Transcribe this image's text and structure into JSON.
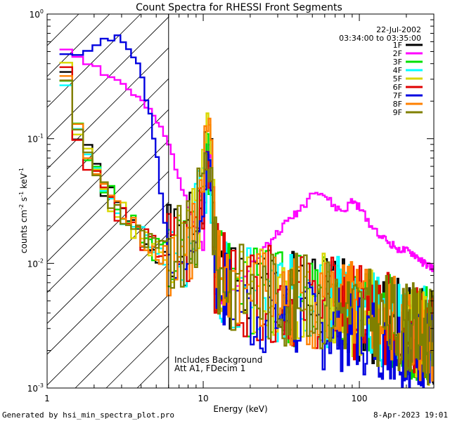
{
  "chart_data": {
    "type": "line",
    "title": "Count Spectra for RHESSI Front Segments",
    "xlabel": "Energy (keV)",
    "ylabel_main": "counts cm",
    "ylabel_exp1": "-2",
    "ylabel_s": " s",
    "ylabel_exp2": "-1",
    "ylabel_kev": " keV",
    "ylabel_exp3": "-1",
    "x_scale": "log",
    "y_scale": "log",
    "xlim": [
      1,
      300
    ],
    "ylim": [
      0.001,
      1
    ],
    "x_ticks": [
      {
        "value": 1,
        "label": "1"
      },
      {
        "value": 10,
        "label": "10"
      },
      {
        "value": 100,
        "label": "100"
      }
    ],
    "y_ticks": [
      {
        "value": 1,
        "base": "10",
        "exp": "0"
      },
      {
        "value": 0.1,
        "base": "10",
        "exp": "-1"
      },
      {
        "value": 0.01,
        "base": "10",
        "exp": "-2"
      },
      {
        "value": 0.001,
        "base": "10",
        "exp": "-3"
      }
    ],
    "date": "22-Jul-2002",
    "time_range": "03:34:00 to 03:35:00",
    "annotation_lines": [
      "Includes Background",
      "Att A1, FDecim 1"
    ],
    "hatched_region_max_kev": 6,
    "series": [
      {
        "name": "1F",
        "color": "#000000",
        "base": "low",
        "seed": 1
      },
      {
        "name": "2F",
        "color": "#ff00ff",
        "base": "magenta",
        "seed": 2
      },
      {
        "name": "3F",
        "color": "#00e000",
        "base": "low",
        "seed": 3
      },
      {
        "name": "4F",
        "color": "#00ffff",
        "base": "low",
        "seed": 4
      },
      {
        "name": "5F",
        "color": "#d8d800",
        "base": "low",
        "seed": 5
      },
      {
        "name": "6F",
        "color": "#e00000",
        "base": "low",
        "seed": 6
      },
      {
        "name": "7F",
        "color": "#0000e0",
        "base": "blue",
        "seed": 7
      },
      {
        "name": "8F",
        "color": "#ff8000",
        "base": "low",
        "seed": 8
      },
      {
        "name": "9F",
        "color": "#808000",
        "base": "low",
        "seed": 9
      }
    ],
    "base_profiles": {
      "magenta": [
        [
          1.2,
          0.55
        ],
        [
          1.5,
          0.5
        ],
        [
          2,
          0.38
        ],
        [
          3,
          0.28
        ],
        [
          4,
          0.2
        ],
        [
          5,
          0.14
        ],
        [
          6,
          0.09
        ],
        [
          7,
          0.05
        ],
        [
          8,
          0.03
        ],
        [
          9,
          0.02
        ],
        [
          10,
          0.013
        ],
        [
          10.5,
          0.05
        ],
        [
          11,
          0.09
        ],
        [
          11.5,
          0.02
        ],
        [
          12,
          0.005
        ],
        [
          13,
          0.0045
        ],
        [
          15,
          0.006
        ],
        [
          18,
          0.008
        ],
        [
          22,
          0.011
        ],
        [
          28,
          0.016
        ],
        [
          35,
          0.022
        ],
        [
          45,
          0.03
        ],
        [
          52,
          0.04
        ],
        [
          60,
          0.035
        ],
        [
          70,
          0.028
        ],
        [
          80,
          0.026
        ],
        [
          90,
          0.032
        ],
        [
          100,
          0.028
        ],
        [
          120,
          0.02
        ],
        [
          150,
          0.015
        ],
        [
          180,
          0.013
        ],
        [
          220,
          0.012
        ],
        [
          260,
          0.01
        ],
        [
          300,
          0.009
        ]
      ],
      "blue": [
        [
          1.2,
          0.45
        ],
        [
          1.5,
          0.5
        ],
        [
          2,
          0.55
        ],
        [
          2.5,
          0.68
        ],
        [
          3,
          0.6
        ],
        [
          3.5,
          0.5
        ],
        [
          4,
          0.33
        ],
        [
          4.5,
          0.18
        ],
        [
          5,
          0.08
        ],
        [
          5.5,
          0.03
        ],
        [
          6,
          0.012
        ],
        [
          6.5,
          0.008
        ],
        [
          7,
          0.009
        ],
        [
          8,
          0.01
        ],
        [
          9,
          0.015
        ],
        [
          10,
          0.025
        ],
        [
          10.8,
          0.09
        ],
        [
          11.5,
          0.03
        ],
        [
          12,
          0.008
        ],
        [
          14,
          0.006
        ],
        [
          17,
          0.005
        ],
        [
          20,
          0.004
        ],
        [
          30,
          0.004
        ],
        [
          40,
          0.0035
        ],
        [
          60,
          0.003
        ],
        [
          80,
          0.003
        ],
        [
          100,
          0.0028
        ],
        [
          150,
          0.0025
        ],
        [
          200,
          0.0022
        ],
        [
          300,
          0.002
        ]
      ],
      "low": [
        [
          1.2,
          0.4
        ],
        [
          1.4,
          0.3
        ],
        [
          1.6,
          0.09
        ],
        [
          2,
          0.06
        ],
        [
          2.5,
          0.035
        ],
        [
          3,
          0.025
        ],
        [
          3.5,
          0.02
        ],
        [
          4,
          0.016
        ],
        [
          5,
          0.013
        ],
        [
          6,
          0.012
        ],
        [
          7,
          0.012
        ],
        [
          8,
          0.013
        ],
        [
          9,
          0.02
        ],
        [
          10,
          0.04
        ],
        [
          10.8,
          0.12
        ],
        [
          11.5,
          0.03
        ],
        [
          12,
          0.009
        ],
        [
          15,
          0.007
        ],
        [
          20,
          0.006
        ],
        [
          30,
          0.0055
        ],
        [
          40,
          0.005
        ],
        [
          60,
          0.005
        ],
        [
          80,
          0.0045
        ],
        [
          100,
          0.004
        ],
        [
          150,
          0.0035
        ],
        [
          200,
          0.003
        ],
        [
          300,
          0.0025
        ]
      ]
    }
  },
  "footer": {
    "left": "Generated by hsi_min_spectra_plot.pro",
    "right": "8-Apr-2023 19:01"
  }
}
